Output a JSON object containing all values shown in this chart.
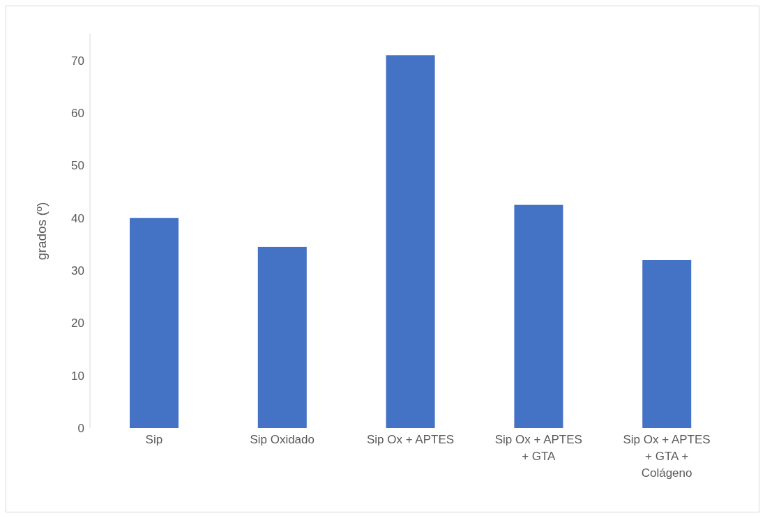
{
  "chart_data": {
    "type": "bar",
    "ylabel": "grados (º)",
    "categories": [
      "Sip",
      "Sip Oxidado",
      "Sip Ox + APTES",
      "Sip Ox + APTES + GTA",
      "Sip Ox + APTES + GTA + Colágeno"
    ],
    "values": [
      40,
      34.5,
      71,
      42.5,
      32
    ],
    "color": "#4472c4",
    "ylim": [
      0,
      75
    ],
    "yticks": [
      0,
      10,
      20,
      30,
      40,
      50,
      60,
      70
    ],
    "grid": false
  }
}
